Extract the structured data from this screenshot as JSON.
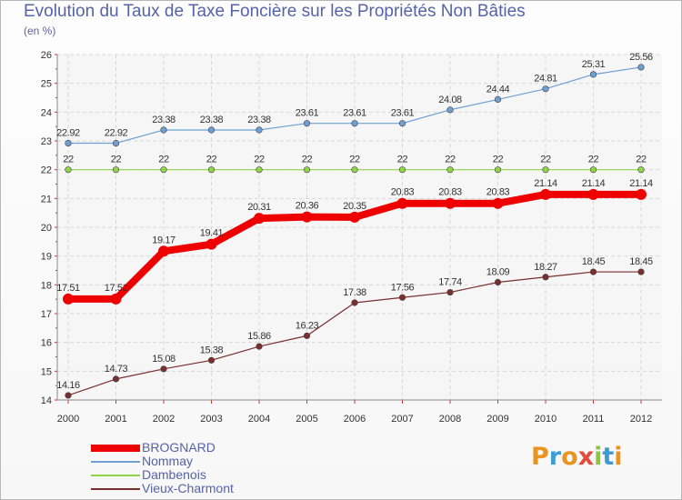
{
  "title": "Evolution du Taux de Taxe Foncière sur les Propriétés Non Bâties",
  "unit_label": "(en %)",
  "logo": {
    "text": "Proxiti",
    "letters": [
      "P",
      "r",
      "o",
      "x",
      "i",
      "t",
      "i"
    ],
    "letter_colors": [
      "#e8941e",
      "#3d9bd6",
      "#e8941e",
      "#e24b3b",
      "#8cc63f",
      "#3d9bd6",
      "#e8941e"
    ]
  },
  "chart_data": {
    "type": "line",
    "title": "Evolution du Taux de Taxe Foncière sur les Propriétés Non Bâties",
    "ylabel": "(en %)",
    "xlabel": "",
    "x": [
      "2000",
      "2001",
      "2002",
      "2003",
      "2004",
      "2005",
      "2006",
      "2007",
      "2008",
      "2009",
      "2010",
      "2011",
      "2012"
    ],
    "ylim": [
      14,
      26
    ],
    "yticks": [
      "14",
      "15",
      "16",
      "17",
      "18",
      "19",
      "20",
      "21",
      "22",
      "23",
      "24",
      "25",
      "26"
    ],
    "grid": true,
    "legend_position": "bottom-left",
    "series": [
      {
        "name": "BROGNARD",
        "color": "#ee0000",
        "emphasis": true,
        "values": [
          17.51,
          17.51,
          19.17,
          19.41,
          20.31,
          20.36,
          20.35,
          20.83,
          20.83,
          20.83,
          21.14,
          21.14,
          21.14
        ],
        "labels": [
          "17.51",
          "17.51",
          "19.17",
          "19.41",
          "20.31",
          "20.36",
          "20.35",
          "20.83",
          "20.83",
          "20.83",
          "21.14",
          "21.14",
          "21.14"
        ]
      },
      {
        "name": "Nommay",
        "color": "#6d9fd3",
        "emphasis": false,
        "values": [
          22.92,
          22.92,
          23.38,
          23.38,
          23.38,
          23.61,
          23.61,
          23.61,
          24.08,
          24.44,
          24.81,
          25.31,
          25.56
        ],
        "labels": [
          "22.92",
          "22.92",
          "23.38",
          "23.38",
          "23.38",
          "23.61",
          "23.61",
          "23.61",
          "24.08",
          "24.44",
          "24.81",
          "25.31",
          "25.56"
        ]
      },
      {
        "name": "Dambenois",
        "color": "#8fd44a",
        "emphasis": false,
        "values": [
          22,
          22,
          22,
          22,
          22,
          22,
          22,
          22,
          22,
          22,
          22,
          22,
          22
        ],
        "labels": [
          "22",
          "22",
          "22",
          "22",
          "22",
          "22",
          "22",
          "22",
          "22",
          "22",
          "22",
          "22",
          "22"
        ]
      },
      {
        "name": "Vieux-Charmont",
        "color": "#7a2e2e",
        "emphasis": false,
        "values": [
          14.16,
          14.73,
          15.08,
          15.38,
          15.86,
          16.23,
          17.38,
          17.56,
          17.74,
          18.09,
          18.27,
          18.45,
          18.45
        ],
        "labels": [
          "14.16",
          "14.73",
          "15.08",
          "15.38",
          "15.86",
          "16.23",
          "17.38",
          "17.56",
          "17.74",
          "18.09",
          "18.27",
          "18.45",
          "18.45"
        ]
      }
    ]
  }
}
